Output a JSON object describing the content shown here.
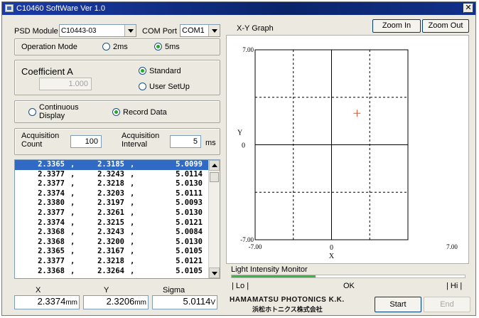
{
  "window": {
    "title": "C10460 SoftWare Ver 1.0",
    "close_glyph": "✕"
  },
  "psd_module": {
    "label": "PSD Module",
    "value": "C10443-03"
  },
  "com_port": {
    "label": "COM Port",
    "value": "COM1"
  },
  "operation_mode": {
    "label": "Operation Mode",
    "options": [
      {
        "label": "2ms",
        "selected": false
      },
      {
        "label": "5ms",
        "selected": true
      }
    ]
  },
  "coefficient": {
    "label": "Coefficient A",
    "value": "1.000",
    "options": [
      {
        "label": "Standard",
        "selected": true
      },
      {
        "label": "User SetUp",
        "selected": false
      }
    ]
  },
  "display_mode": {
    "options": [
      {
        "label": "Continuous Display",
        "selected": false
      },
      {
        "label": "Record Data",
        "selected": true
      }
    ]
  },
  "acquisition": {
    "count_label": "Acquisition Count",
    "count_value": "100",
    "interval_label": "Acquisition Interval",
    "interval_value": "5",
    "interval_unit": "ms"
  },
  "data_list": {
    "separator": ",",
    "rows": [
      [
        "2.3365",
        "2.3185",
        "5.0099"
      ],
      [
        "2.3377",
        "2.3243",
        "5.0114"
      ],
      [
        "2.3377",
        "2.3218",
        "5.0130"
      ],
      [
        "2.3374",
        "2.3203",
        "5.0111"
      ],
      [
        "2.3380",
        "2.3197",
        "5.0093"
      ],
      [
        "2.3377",
        "2.3261",
        "5.0130"
      ],
      [
        "2.3374",
        "2.3215",
        "5.0121"
      ],
      [
        "2.3368",
        "2.3243",
        "5.0084"
      ],
      [
        "2.3368",
        "2.3200",
        "5.0130"
      ],
      [
        "2.3365",
        "2.3167",
        "5.0105"
      ],
      [
        "2.3377",
        "2.3218",
        "5.0121"
      ],
      [
        "2.3368",
        "2.3264",
        "5.0105"
      ]
    ],
    "selected_index": 0
  },
  "readouts": {
    "x": {
      "label": "X",
      "value": "2.3374",
      "unit": "mm"
    },
    "y": {
      "label": "Y",
      "value": "2.3206",
      "unit": "mm"
    },
    "sigma": {
      "label": "Sigma",
      "value": "5.0114",
      "unit": "V"
    }
  },
  "graph": {
    "title": "X-Y Graph",
    "zoom_in_label": "Zoom In",
    "zoom_out_label": "Zoom Out",
    "x_axis_label": "X",
    "y_axis_label": "Y",
    "x_min_label": "-7.00",
    "x_max_label": "7.00",
    "x_zero_label": "0",
    "y_max_label": "7.00",
    "y_min_label": "-7.00",
    "y_zero_label": "0",
    "marker_color": "#e0502a"
  },
  "chart_data": {
    "type": "scatter",
    "title": "X-Y Graph",
    "xlabel": "X",
    "ylabel": "Y",
    "xlim": [
      -7.0,
      7.0
    ],
    "ylim": [
      -7.0,
      7.0
    ],
    "grid": true,
    "x": [
      2.3374
    ],
    "y": [
      2.3206
    ]
  },
  "light_monitor": {
    "label": "Light Intensity Monitor",
    "lo_label": "| Lo |",
    "ok_label": "OK",
    "hi_label": "| Hi |",
    "level": 0.36,
    "color": "#39b54a"
  },
  "logo": {
    "line1": "HAMAMATSU PHOTONICS K.K.",
    "line2": "浜松ホトニクス株式会社"
  },
  "buttons": {
    "start_label": "Start",
    "end_label": "End"
  }
}
